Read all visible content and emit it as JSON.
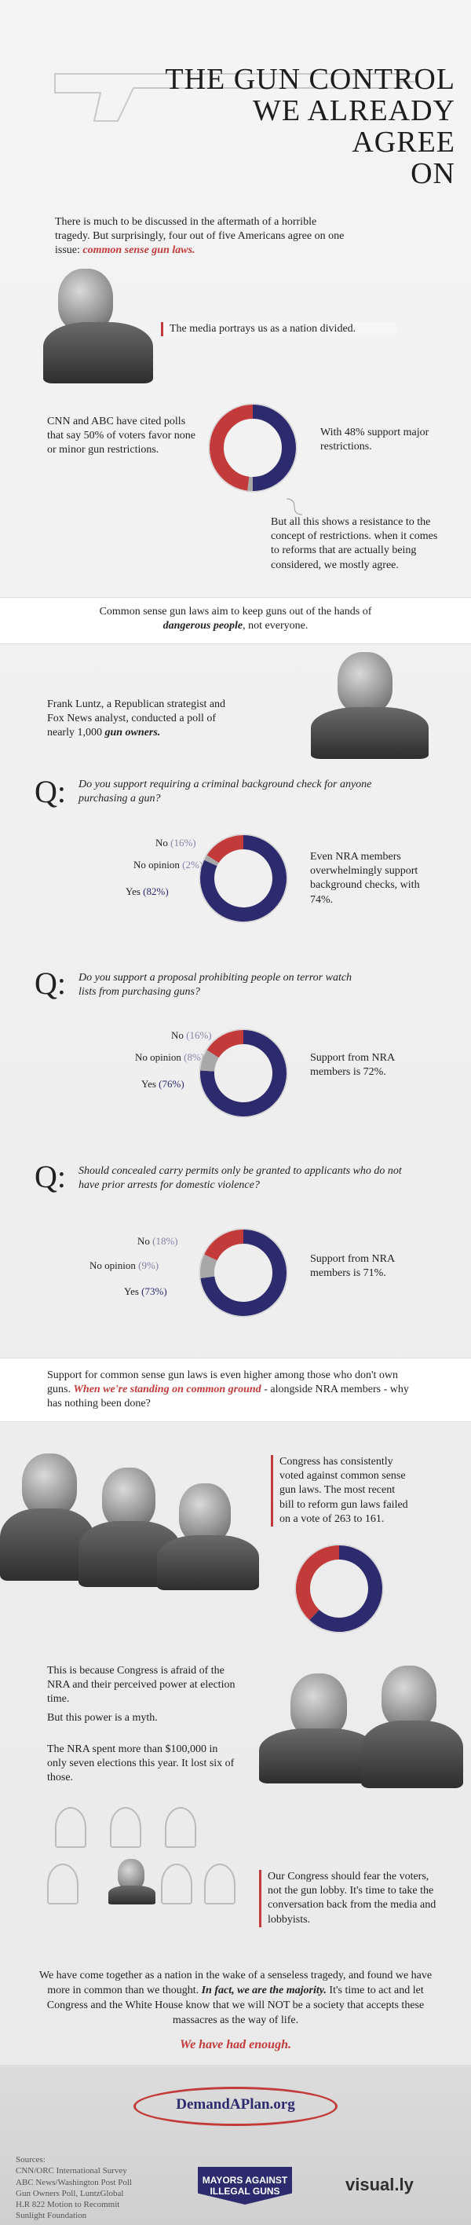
{
  "title": {
    "line1": "THE GUN CONTROL",
    "line2": "WE ALREADY",
    "line3": "AGREE",
    "line4": "ON"
  },
  "intro": {
    "p1": "There is much to be discussed in the aftermath of a horrible tragedy.",
    "p2": "But surprisingly, four out of five Americans agree on one issue:",
    "emph": "common sense gun laws."
  },
  "section1": {
    "bubble": "The media portrays us as a nation divided.",
    "left_text": "CNN and ABC have cited polls that say 50% of voters favor none or minor gun restrictions.",
    "right_text": "With 48% support major restrictions.",
    "bottom_text": "But all this shows a resistance to the concept of restrictions. when it comes to reforms that are actually being considered, we mostly agree.",
    "donut": {
      "blue": 50,
      "red": 48,
      "gray": 2
    }
  },
  "band1": {
    "text": "Common sense gun laws aim to keep guns out of the hands of",
    "emph": "dangerous people",
    "tail": ", not everyone."
  },
  "luntz": {
    "text_a": "Frank Luntz, a Republican strategist and Fox News analyst, conducted a poll of nearly 1,000",
    "text_emph": "gun owners."
  },
  "questions": [
    {
      "q": "Q:",
      "text": "Do you support requiring a criminal background check for anyone purchasing a gun?",
      "no_label": "No",
      "no_val": "(16%)",
      "op_label": "No opinion",
      "op_val": "(2%)",
      "yes_label": "Yes",
      "yes_val": "(82%)",
      "note": "Even NRA members overwhelmingly support background checks, with 74%.",
      "values": {
        "yes": 82,
        "no": 16,
        "opinion": 2
      }
    },
    {
      "q": "Q:",
      "text": "Do you support a proposal prohibiting people on terror watch lists from purchasing guns?",
      "no_label": "No",
      "no_val": "(16%)",
      "op_label": "No opinion",
      "op_val": "(8%)",
      "yes_label": "Yes",
      "yes_val": "(76%)",
      "note": "Support from NRA members is 72%.",
      "values": {
        "yes": 76,
        "no": 16,
        "opinion": 8
      }
    },
    {
      "q": "Q:",
      "text": "Should concealed carry permits only be granted to applicants who do not have prior arrests for domestic violence?",
      "no_label": "No",
      "no_val": "(18%)",
      "op_label": "No opinion",
      "op_val": "(9%)",
      "yes_label": "Yes",
      "yes_val": "(73%)",
      "note": "Support from NRA members is 71%.",
      "values": {
        "yes": 73,
        "no": 18,
        "opinion": 9
      }
    }
  ],
  "band2": {
    "text_a": "Support for common sense gun laws is even higher among those who don't own guns.",
    "emph": "When we're standing on common ground",
    "text_b": "- alongside NRA members - why has nothing been done?"
  },
  "congress": {
    "vote_text": "Congress has consistently voted against common sense gun laws. The most recent bill to reform gun laws failed on a vote of 263 to 161.",
    "donut": {
      "against": 263,
      "for": 161
    },
    "afraid_text": "This is because Congress is afraid of the NRA and their perceived power at election time.",
    "myth_text": "But this power is a myth.",
    "spent_text": "The NRA spent more than $100,000 in only seven elections this year. It lost six of those.",
    "fear_text": "Our Congress should fear the voters, not the gun lobby. It's time to take the conversation back from the media and lobbyists."
  },
  "closing": {
    "text_a": "We have come together as a nation in the wake of a senseless tragedy, and found we have more in common than we thought.",
    "emph": "In fact, we are the majority.",
    "text_b": "It's time to act and let Congress and the White House know that we will NOT be a society that accepts these massacres as the way of life.",
    "enough": "We have had enough."
  },
  "footer": {
    "url": "DemandAPlan.org",
    "sources": [
      "Sources:",
      "CNN/ORC International Survey",
      "ABC News/Washington Post Poll",
      "Gun Owners Poll, LuntzGlobal",
      "H.R 822 Motion to Recommit",
      "Sunlight Foundation"
    ],
    "mayors_logo": "MAYORS AGAINST ILLEGAL GUNS",
    "visually_logo": "visual.ly"
  },
  "colors": {
    "blue": "#2d2a6e",
    "red": "#c33a3a",
    "gray": "#a8a8a8"
  }
}
